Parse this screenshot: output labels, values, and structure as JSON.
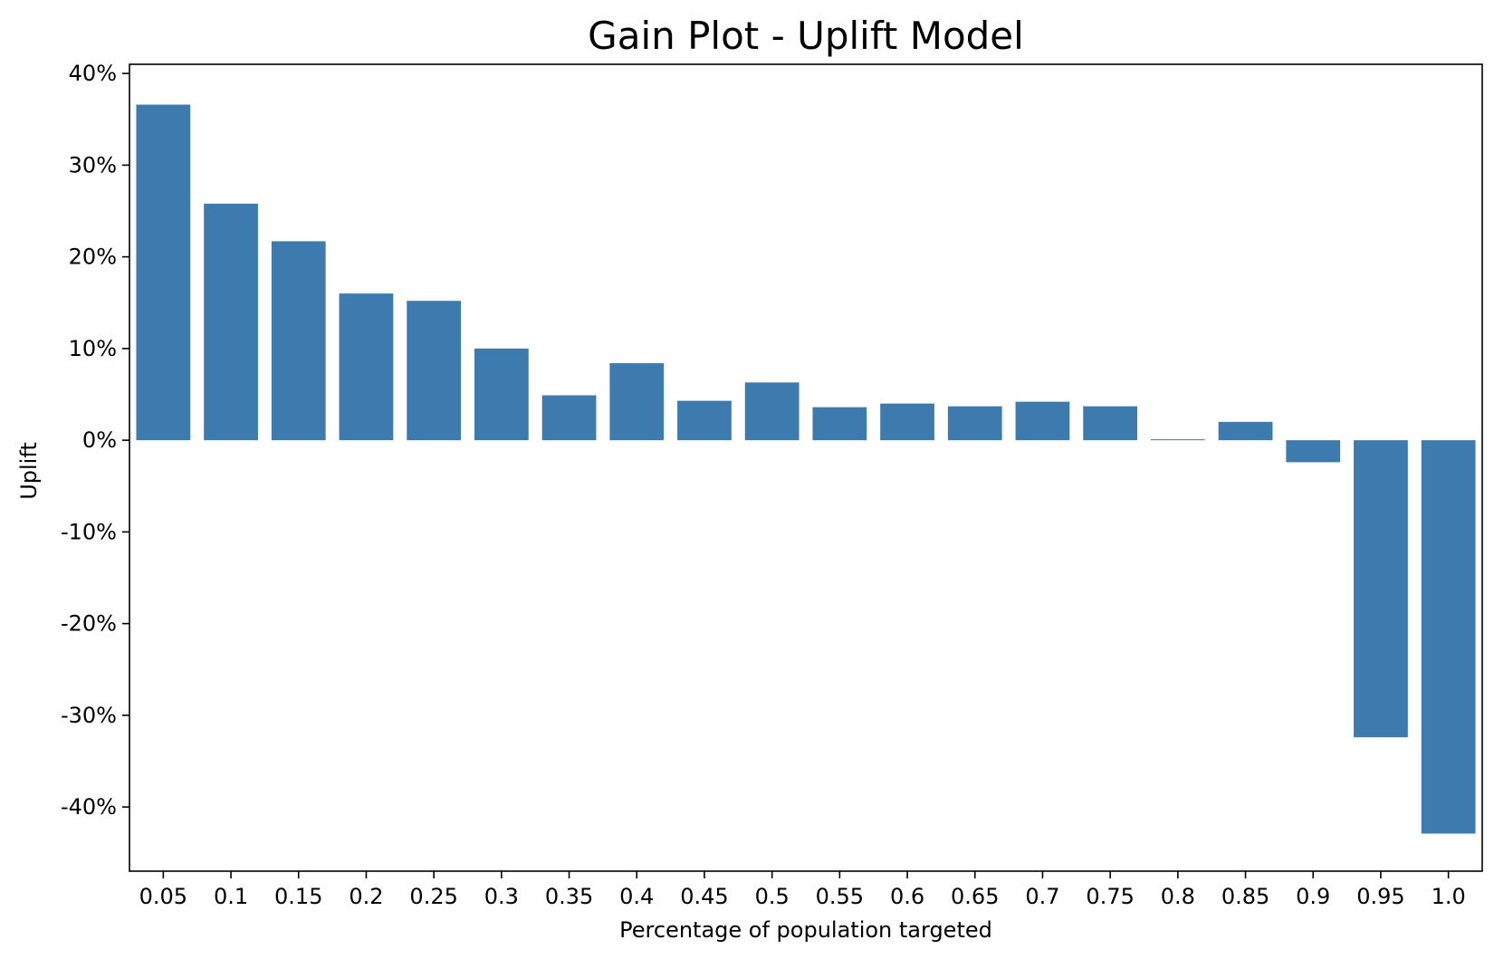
{
  "chart_data": {
    "type": "bar",
    "title": "Gain Plot - Uplift Model",
    "xlabel": "Percentage of population targeted",
    "ylabel": "Uplift",
    "categories": [
      "0.05",
      "0.1",
      "0.15",
      "0.2",
      "0.25",
      "0.3",
      "0.35",
      "0.4",
      "0.45",
      "0.5",
      "0.55",
      "0.6",
      "0.65",
      "0.7",
      "0.75",
      "0.8",
      "0.85",
      "0.9",
      "0.95",
      "1.0"
    ],
    "values": [
      36.6,
      25.8,
      21.7,
      16.0,
      15.2,
      10.0,
      4.9,
      8.4,
      4.3,
      6.3,
      3.6,
      4.0,
      3.7,
      4.2,
      3.7,
      0.1,
      2.0,
      -2.4,
      -32.4,
      -42.9
    ],
    "value_unit": "%",
    "ylim": [
      -47,
      41
    ],
    "yticks": [
      40,
      30,
      20,
      10,
      0,
      -10,
      -20,
      -30,
      -40
    ],
    "ytick_labels": [
      "40%",
      "30%",
      "20%",
      "10%",
      "0%",
      "-10%",
      "-20%",
      "-30%",
      "-40%"
    ],
    "grid": false,
    "legend": "none",
    "colors": {
      "bar": "#3d7aad",
      "axis": "#000000",
      "background": "#ffffff"
    }
  }
}
